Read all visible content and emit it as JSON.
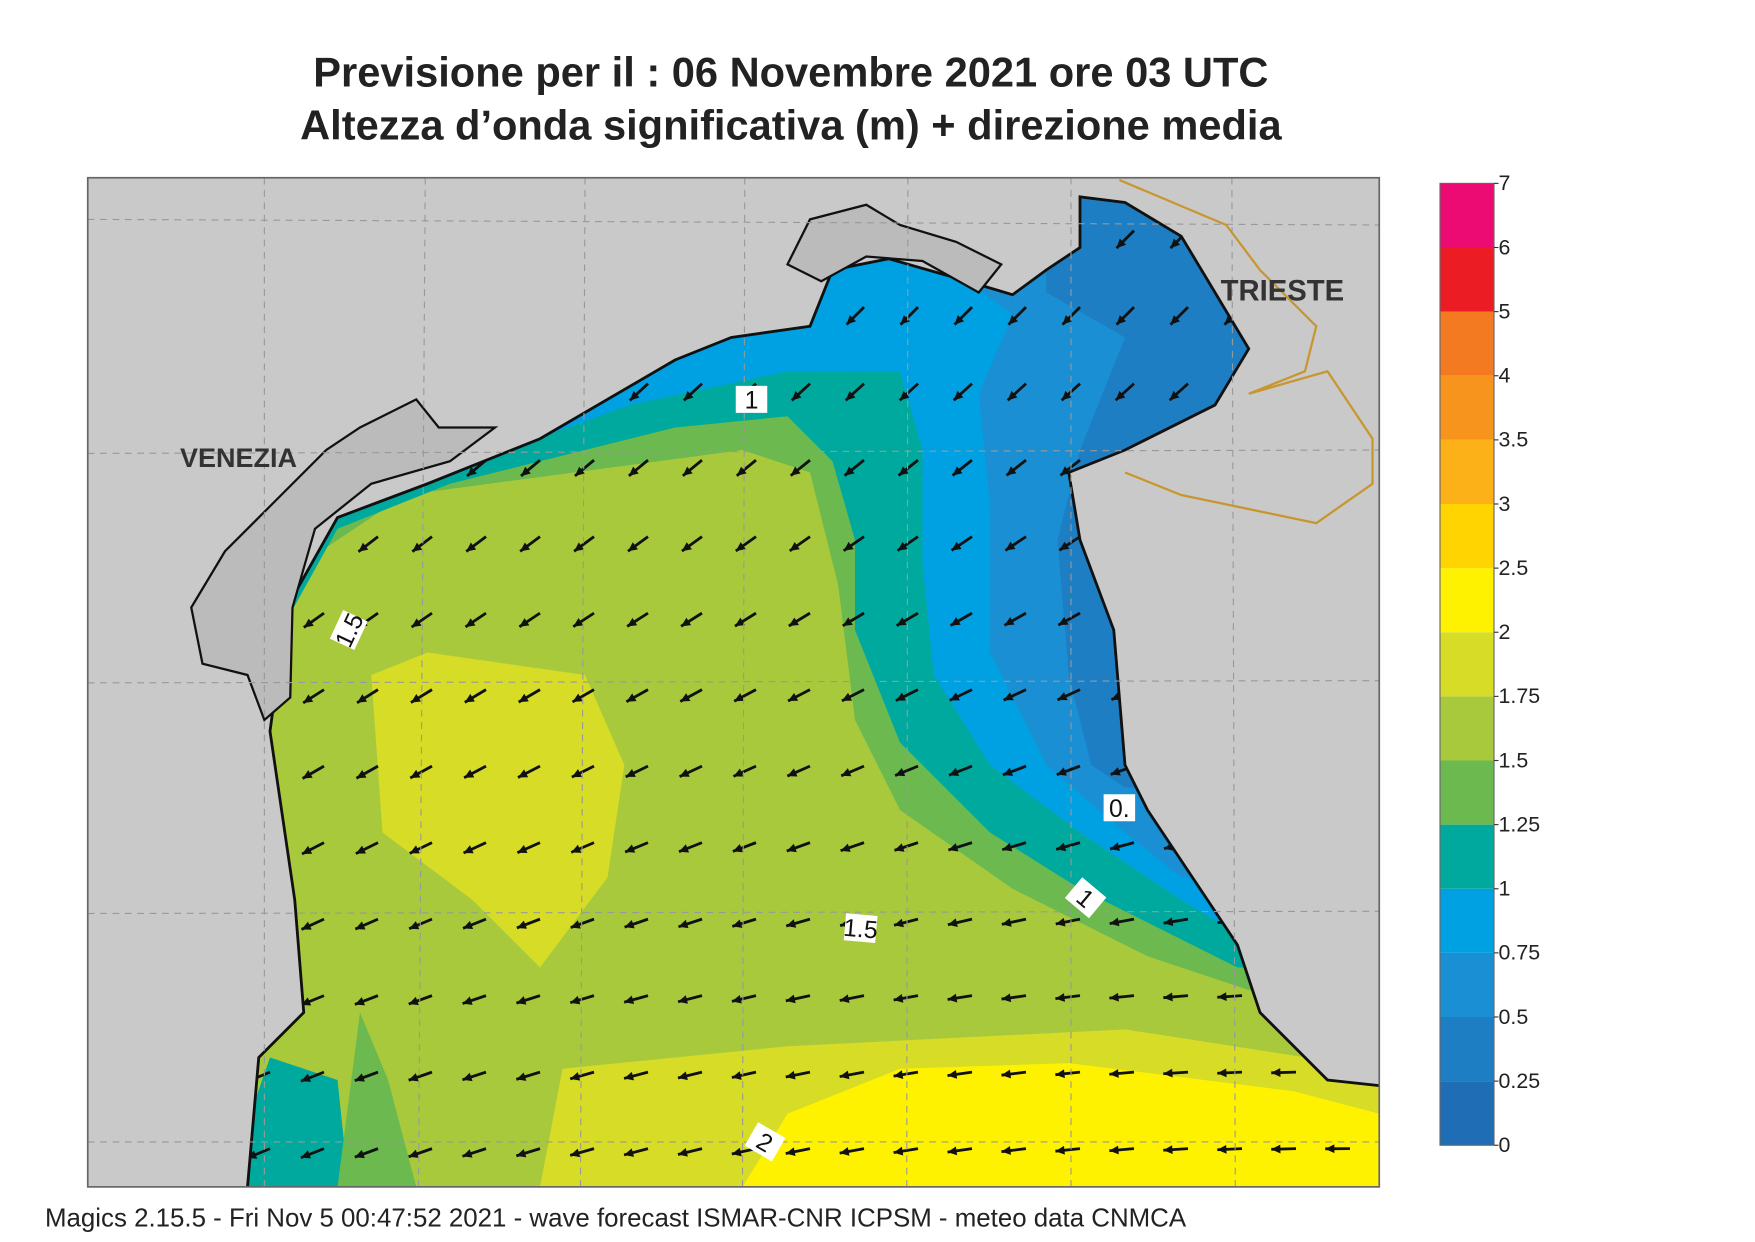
{
  "title": "Previsione per il  :  06 Novembre  2021   ore 03 UTC",
  "subtitle": "Altezza d’onda significativa (m) + direzione media",
  "places": [
    "VENEZIA",
    "TRIESTE"
  ],
  "contour_labels": [
    "1",
    "1.5",
    "0.",
    "1",
    "1.5",
    "2"
  ],
  "colorbar": {
    "levels": [
      0,
      0.25,
      0.5,
      0.75,
      1,
      1.25,
      1.5,
      1.75,
      2,
      2.5,
      3,
      3.5,
      4,
      5,
      6,
      7
    ],
    "colors": [
      "#1f6db5",
      "#1e7ec4",
      "#1a8fd3",
      "#00a1e2",
      "#00a99d",
      "#6cb94f",
      "#a9c93c",
      "#d7dc26",
      "#fff200",
      "#ffd400",
      "#fbb117",
      "#f7941d",
      "#f37a21",
      "#ec1c24",
      "#ec0b73"
    ]
  },
  "footer": "Magics 2.15.5 - Fri Nov  5 00:47:52 2021 - wave forecast  ISMAR-CNR  ICPSM - meteo data   CNMCA"
}
